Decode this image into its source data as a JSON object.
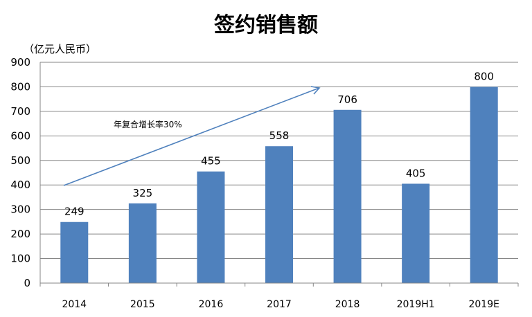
{
  "chart_data": {
    "type": "bar",
    "title": "签约销售额",
    "ylabel": "（亿元人民币）",
    "xlabel": "",
    "categories": [
      "2014",
      "2015",
      "2016",
      "2017",
      "2018",
      "2019H1",
      "2019E"
    ],
    "values": [
      249,
      325,
      455,
      558,
      706,
      405,
      800
    ],
    "data_labels": [
      "249",
      "325",
      "455",
      "558",
      "706",
      "405",
      "800"
    ],
    "ylim": [
      0,
      900
    ],
    "yticks": [
      0,
      100,
      200,
      300,
      400,
      500,
      600,
      700,
      800,
      900
    ],
    "grid": true,
    "legend": "none",
    "bar_color": "#4f81bd",
    "annotation": {
      "text": "年复合增长率30%",
      "arrow_color": "#4f81bd"
    }
  }
}
